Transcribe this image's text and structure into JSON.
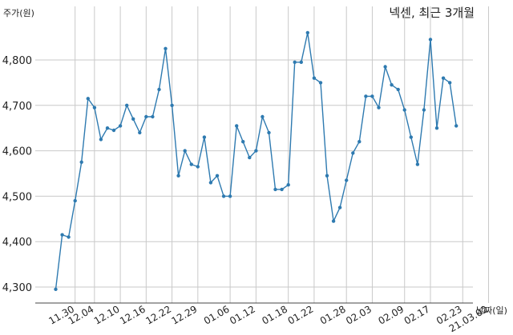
{
  "chart_data": {
    "type": "line",
    "title": "넥센, 최근 3개월",
    "ylabel": "주가(원)",
    "xlabel": "날짜(일)",
    "ylim": [
      4270,
      4880
    ],
    "yticks": [
      4300,
      4400,
      4500,
      4600,
      4700,
      4800
    ],
    "ytick_labels": [
      "4,300",
      "4,400",
      "4,500",
      "4,600",
      "4,700",
      "4,800"
    ],
    "grid": true,
    "line_color": "#2e7ab0",
    "xtick_labels": [
      "11.30",
      "12.04",
      "12.10",
      "12.16",
      "12.22",
      "12.29",
      "01.06",
      "01.12",
      "01.18",
      "01.22",
      "01.28",
      "02.03",
      "02.09",
      "02.17",
      "02.23",
      "21.03.02"
    ],
    "xtick_index": [
      3,
      6,
      10,
      14,
      18,
      22,
      27,
      31,
      36,
      40,
      45,
      49,
      54,
      58,
      63,
      67
    ],
    "series": [
      {
        "values": [
          4295,
          4415,
          4410,
          4490,
          4575,
          4715,
          4695,
          4625,
          4650,
          4645,
          4655,
          4700,
          4670,
          4640,
          4675,
          4675,
          4735,
          4825,
          4700,
          4545,
          4600,
          4570,
          4565,
          4630,
          4530,
          4545,
          4500,
          4500,
          4655,
          4620,
          4585,
          4600,
          4675,
          4640,
          4515,
          4515,
          4525,
          4795,
          4795,
          4860,
          4760,
          4750,
          4545,
          4445,
          4475,
          4535,
          4595,
          4620,
          4720,
          4720,
          4695,
          4785,
          4745,
          4735,
          4690,
          4630,
          4570,
          4690,
          4845,
          4650,
          4760,
          4750,
          4655
        ]
      }
    ]
  }
}
